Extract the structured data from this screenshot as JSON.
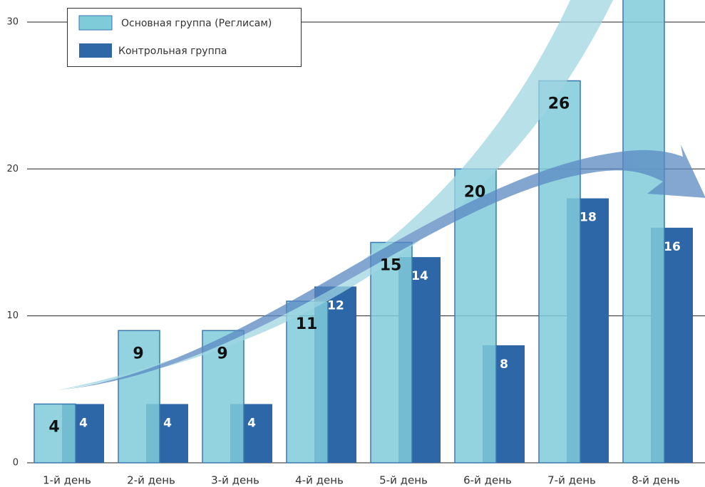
{
  "chart_data": {
    "type": "bar",
    "categories": [
      "1-й день",
      "2-й день",
      "3-й день",
      "4-й день",
      "5-й день",
      "6-й день",
      "7-й день",
      "8-й день"
    ],
    "series": [
      {
        "name": "Основная группа (Реглисам)",
        "color": "#7fcbd9",
        "values": [
          4,
          9,
          9,
          11,
          15,
          20,
          26,
          33
        ],
        "value_labels": [
          "4",
          "9",
          "9",
          "11",
          "15",
          "20",
          "26",
          null
        ]
      },
      {
        "name": "Контрольная группа",
        "color": "#2e67a8",
        "values": [
          4,
          4,
          4,
          12,
          14,
          8,
          18,
          16
        ]
      }
    ],
    "ylim": [
      0,
      31.5
    ],
    "yticks": [
      0,
      10,
      20,
      30
    ],
    "grid": true,
    "legend": "top-left"
  }
}
